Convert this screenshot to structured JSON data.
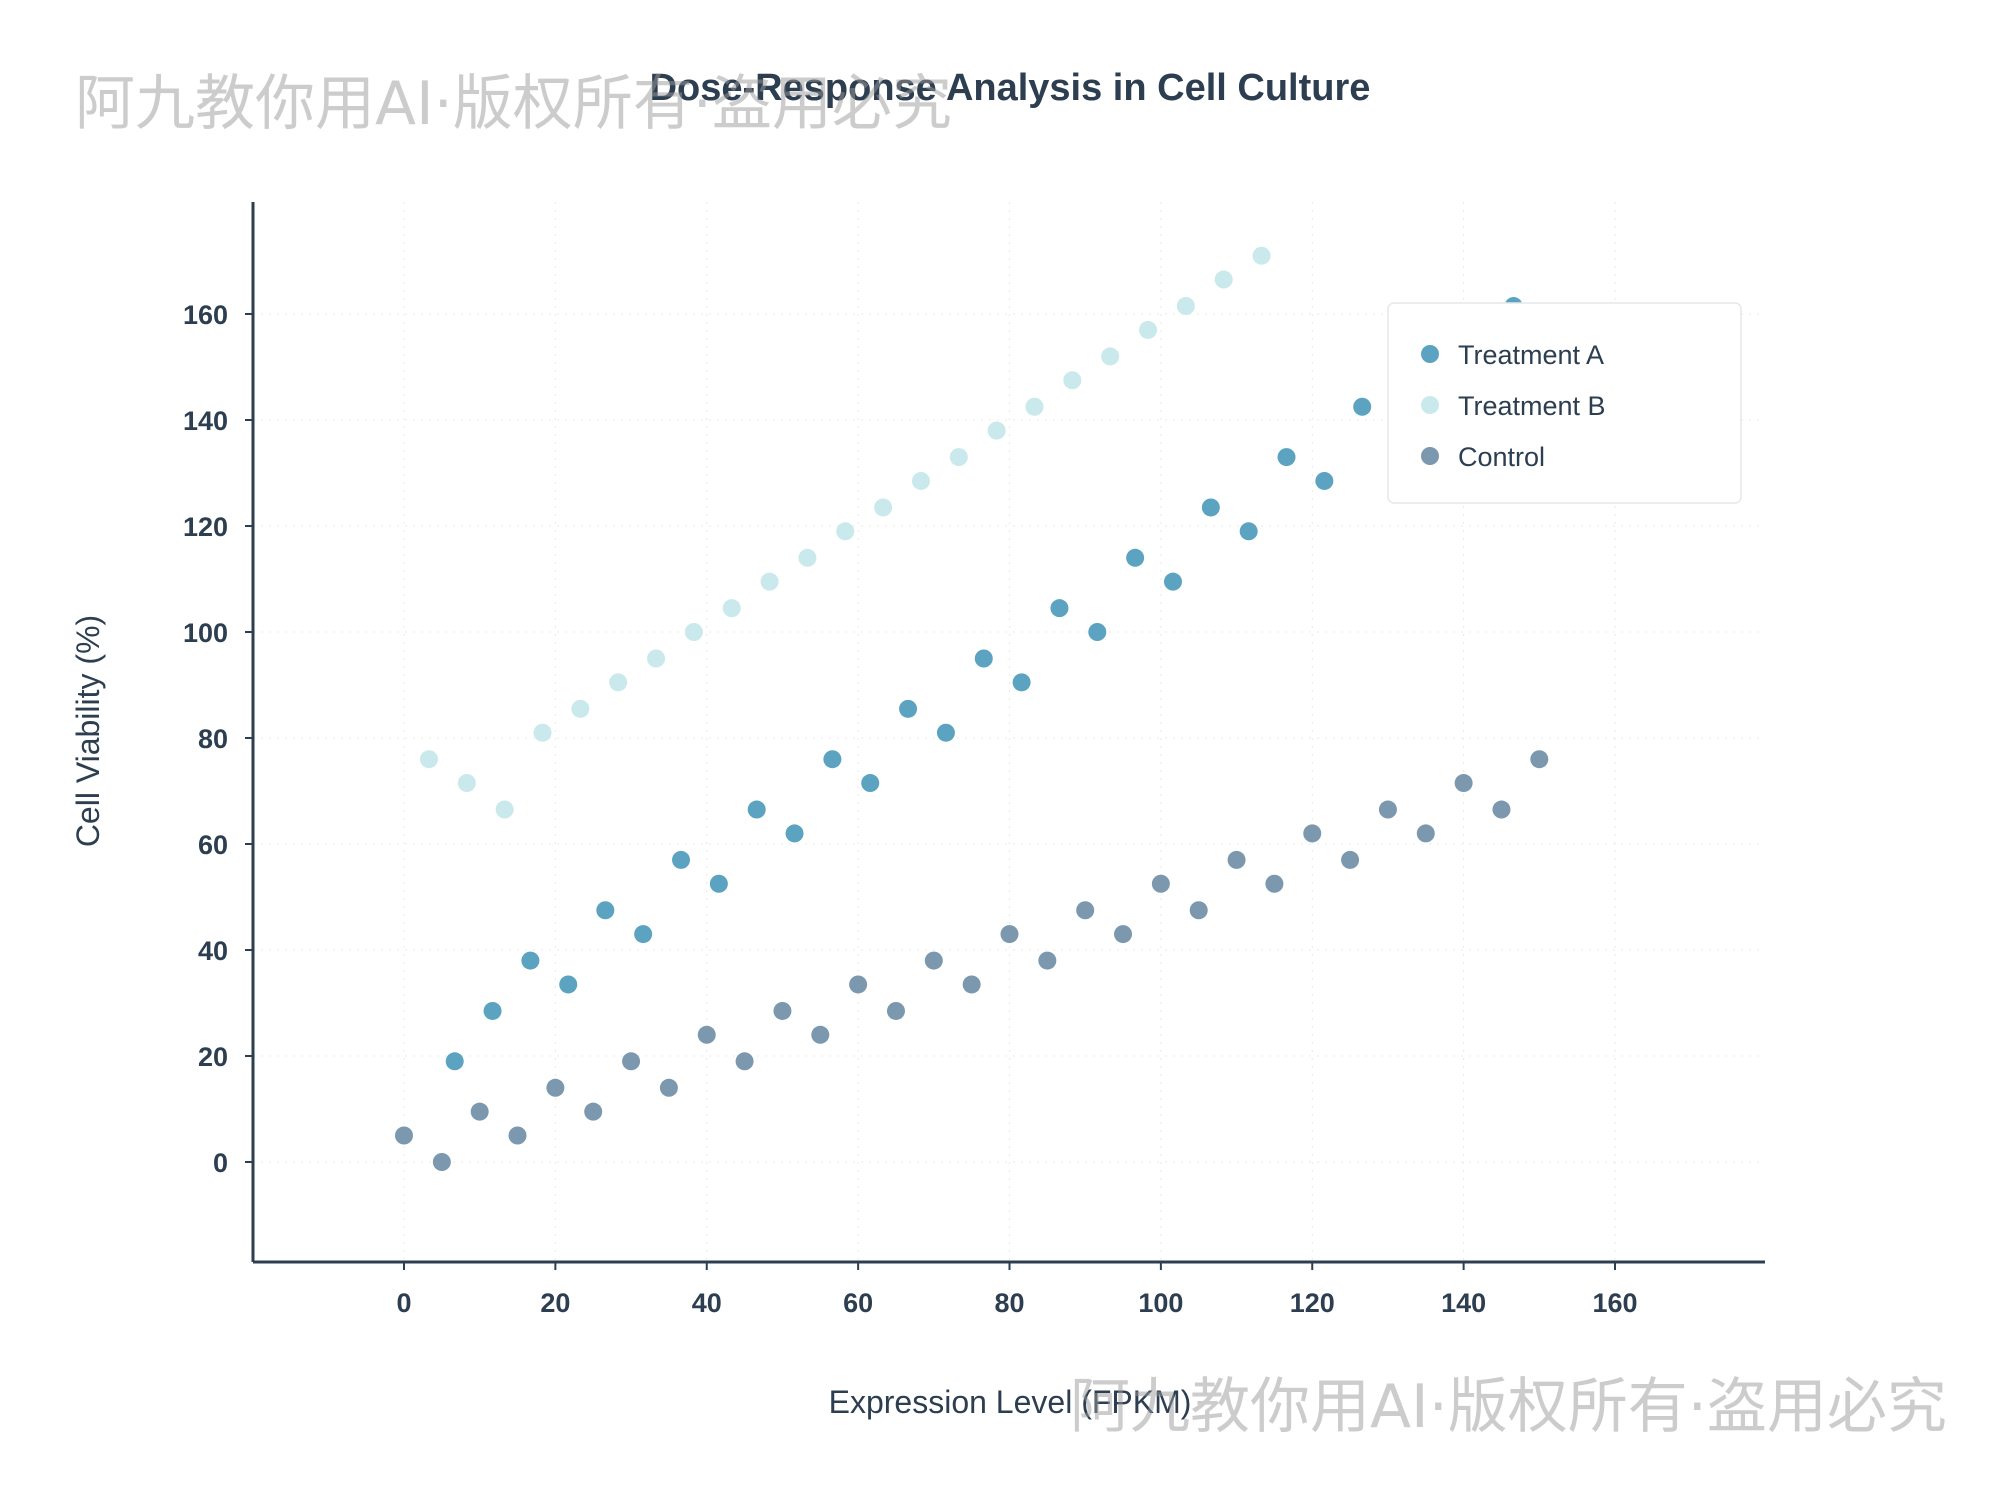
{
  "chart_data": {
    "type": "scatter",
    "title": "Dose-Response Analysis in Cell Culture",
    "xlabel": "Expression Level (FPKM)",
    "ylabel": "Cell Viability (%)",
    "xlim": [
      -20,
      180
    ],
    "ylim": [
      -19,
      182
    ],
    "xticks": [
      0,
      20,
      40,
      60,
      80,
      100,
      120,
      140,
      160
    ],
    "yticks": [
      0,
      20,
      40,
      60,
      80,
      100,
      120,
      140,
      160
    ],
    "grid": true,
    "legend_position": "top-right",
    "series": [
      {
        "name": "Treatment A",
        "color": "#5ba3c1",
        "points": [
          [
            6.7,
            19
          ],
          [
            11.7,
            28.5
          ],
          [
            16.7,
            38
          ],
          [
            21.7,
            33.5
          ],
          [
            26.6,
            47.5
          ],
          [
            31.6,
            43
          ],
          [
            36.6,
            57
          ],
          [
            41.6,
            52.5
          ],
          [
            46.6,
            66.5
          ],
          [
            51.6,
            62
          ],
          [
            56.6,
            76
          ],
          [
            61.6,
            71.5
          ],
          [
            66.6,
            85.5
          ],
          [
            71.6,
            81
          ],
          [
            76.6,
            95
          ],
          [
            81.6,
            90.5
          ],
          [
            86.6,
            104.5
          ],
          [
            91.6,
            100
          ],
          [
            96.6,
            114
          ],
          [
            101.6,
            109.5
          ],
          [
            106.6,
            123.5
          ],
          [
            111.6,
            119
          ],
          [
            116.6,
            133
          ],
          [
            121.6,
            128.5
          ],
          [
            126.6,
            142.5
          ],
          [
            146.6,
            161.5
          ]
        ]
      },
      {
        "name": "Treatment B",
        "color": "#c9e9ec",
        "points": [
          [
            3.3,
            76
          ],
          [
            8.3,
            71.5
          ],
          [
            13.3,
            66.5
          ],
          [
            18.3,
            81
          ],
          [
            23.3,
            85.5
          ],
          [
            28.3,
            90.5
          ],
          [
            33.3,
            95
          ],
          [
            38.3,
            100
          ],
          [
            43.3,
            104.5
          ],
          [
            48.3,
            109.5
          ],
          [
            53.3,
            114
          ],
          [
            58.3,
            119
          ],
          [
            63.3,
            123.5
          ],
          [
            68.3,
            128.5
          ],
          [
            73.3,
            133
          ],
          [
            78.3,
            138
          ],
          [
            83.3,
            142.5
          ],
          [
            88.3,
            147.5
          ],
          [
            93.3,
            152
          ],
          [
            98.3,
            157
          ],
          [
            103.3,
            161.5
          ],
          [
            108.3,
            166.5
          ],
          [
            113.3,
            171
          ]
        ]
      },
      {
        "name": "Control",
        "color": "#7b98ae",
        "points": [
          [
            0,
            5
          ],
          [
            5,
            0
          ],
          [
            10,
            9.5
          ],
          [
            15,
            5
          ],
          [
            20,
            14
          ],
          [
            25,
            9.5
          ],
          [
            30,
            19
          ],
          [
            35,
            14
          ],
          [
            40,
            24
          ],
          [
            45,
            19
          ],
          [
            50,
            28.5
          ],
          [
            55,
            24
          ],
          [
            60,
            33.5
          ],
          [
            65,
            28.5
          ],
          [
            70,
            38
          ],
          [
            75,
            33.5
          ],
          [
            80,
            43
          ],
          [
            85,
            38
          ],
          [
            90,
            47.5
          ],
          [
            95,
            43
          ],
          [
            100,
            52.5
          ],
          [
            105,
            47.5
          ],
          [
            110,
            57
          ],
          [
            115,
            52.5
          ],
          [
            120,
            62
          ],
          [
            125,
            57
          ],
          [
            130,
            66.5
          ],
          [
            135,
            62
          ],
          [
            140,
            71.5
          ],
          [
            145,
            66.5
          ],
          [
            150,
            76
          ]
        ]
      }
    ]
  },
  "watermarks": [
    "阿九教你用AI·版权所有·盗用必究",
    "阿九教你用AI·版权所有·盗用必究"
  ]
}
